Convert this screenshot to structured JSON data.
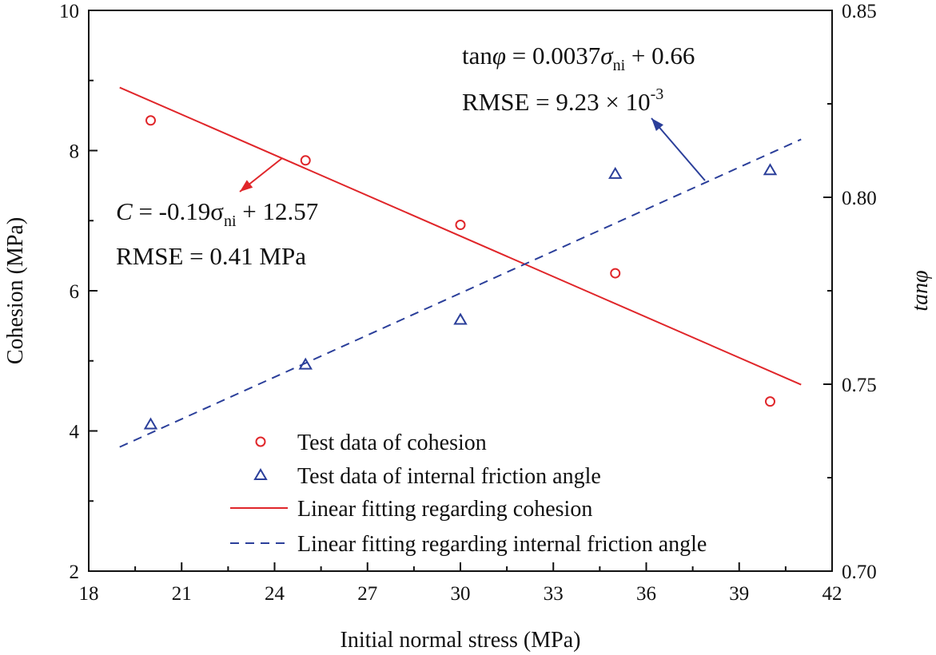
{
  "chart_data": {
    "type": "scatter",
    "xlabel": "Initial normal stress (MPa)",
    "ylabel": "Cohesion (MPa)",
    "y2label": "tanφ",
    "xlim": [
      18,
      42
    ],
    "ylim": [
      2,
      10
    ],
    "y2lim": [
      0.7,
      0.85
    ],
    "x_ticks": [
      "18",
      "21",
      "24",
      "27",
      "30",
      "33",
      "36",
      "39",
      "42"
    ],
    "y_ticks": [
      "2",
      "4",
      "6",
      "8",
      "10"
    ],
    "y2_ticks": [
      "0.70",
      "0.75",
      "0.80",
      "0.85"
    ],
    "series": [
      {
        "name": "Test data of cohesion",
        "axis": "left",
        "marker": "circle",
        "color": "#e0262a",
        "x": [
          20,
          25,
          30,
          35,
          40
        ],
        "y": [
          8.43,
          7.86,
          6.94,
          6.25,
          4.42
        ]
      },
      {
        "name": "Test data of internal friction angle",
        "axis": "right",
        "marker": "triangle",
        "color": "#2b3f9a",
        "x": [
          20,
          25,
          30,
          35,
          40
        ],
        "y": [
          0.739,
          0.755,
          0.767,
          0.806,
          0.807
        ]
      },
      {
        "name": "Linear fitting regarding cohesion",
        "axis": "left",
        "style": "solid",
        "color": "#e0262a",
        "x": [
          19,
          41
        ],
        "y": [
          8.9,
          4.66
        ]
      },
      {
        "name": "Linear fitting regarding internal friction angle",
        "axis": "right",
        "style": "dashed",
        "color": "#2b3f9a",
        "x": [
          19,
          41
        ],
        "y": [
          0.7332,
          0.8155
        ]
      }
    ],
    "annotations": {
      "tan_eq": {
        "lhs": "tan",
        "phi": "φ",
        "eq": " = 0.0037",
        "sigma": "σ",
        "sub": "ni",
        "rest": " + 0.66"
      },
      "tan_rmse": {
        "base": "RMSE = 9.23 × 10",
        "exp": "-3"
      },
      "c_eq": {
        "c": "C",
        "eq": " = -0.19σ",
        "sub": "ni",
        "rest": " + 12.57"
      },
      "c_rmse": "RMSE = 0.41 MPa"
    },
    "legend_position": "bottom-right"
  }
}
